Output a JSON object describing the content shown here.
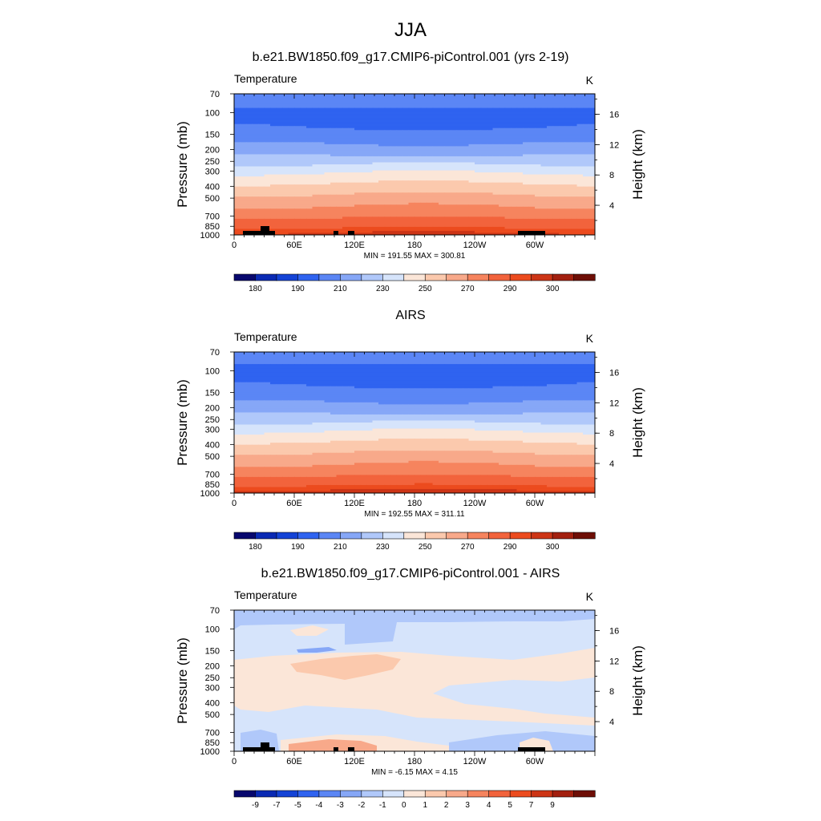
{
  "title": "JJA",
  "panels": [
    {
      "title": "b.e21.BW1850.f09_g17.CMIP6-piControl.001 (yrs 2-19)",
      "left_label": "Temperature",
      "right_label": "K",
      "stats": "MIN = 191.55  MAX = 300.81",
      "kind": "abs",
      "terrain": true
    },
    {
      "title": "AIRS",
      "left_label": "Temperature",
      "right_label": "K",
      "stats": "MIN = 192.55  MAX = 311.11",
      "kind": "abs",
      "terrain": false
    },
    {
      "title": "b.e21.BW1850.f09_g17.CMIP6-piControl.001 - AIRS",
      "left_label": "Temperature",
      "right_label": "K",
      "stats": "MIN =  -6.15  MAX =   4.15",
      "kind": "diff",
      "terrain": true
    }
  ],
  "axes": {
    "ylabel": "Pressure (mb)",
    "y2label": "Height (km)",
    "pressure_ticks": [
      "70",
      "100",
      "150",
      "200",
      "250",
      "300",
      "400",
      "500",
      "700",
      "850",
      "1000"
    ],
    "height_ticks": [
      "16",
      "12",
      "8",
      "4"
    ],
    "x_ticks": [
      "0",
      "60E",
      "120E",
      "180",
      "120W",
      "60W"
    ]
  },
  "colorbars": {
    "abs": {
      "colors": [
        "#08086e",
        "#0a2ab4",
        "#1443d6",
        "#2f63f0",
        "#5b86f5",
        "#86a7f7",
        "#b0c8fa",
        "#d6e4fb",
        "#fbe6d8",
        "#fbc9ad",
        "#f8a98a",
        "#f6845e",
        "#f2633c",
        "#ec4b1e",
        "#cd3516",
        "#a3200f",
        "#6e0e06"
      ],
      "labels": [
        "180",
        "190",
        "210",
        "230",
        "250",
        "270",
        "290",
        "300"
      ]
    },
    "diff": {
      "colors": [
        "#08086e",
        "#0a2ab4",
        "#1443d6",
        "#2f63f0",
        "#5b86f5",
        "#86a7f7",
        "#b0c8fa",
        "#d6e4fb",
        "#fbe6d8",
        "#fbc9ad",
        "#f8a98a",
        "#f6845e",
        "#f2633c",
        "#ec4b1e",
        "#cd3516",
        "#a3200f",
        "#6e0e06"
      ],
      "labels": [
        "-9",
        "-7",
        "-5",
        "-4",
        "-3",
        "-2",
        "-1",
        "0",
        "1",
        "2",
        "3",
        "4",
        "5",
        "7",
        "9"
      ]
    }
  },
  "chart_data": [
    {
      "type": "heatmap",
      "title": "b.e21.BW1850.f09_g17.CMIP6-piControl.001 (yrs 2-19)",
      "xlabel": "",
      "ylabel": "Pressure (mb)",
      "y2label": "Height (km)",
      "variable": "Temperature",
      "units": "K",
      "x_ticks": [
        "0",
        "60E",
        "120E",
        "180",
        "120W",
        "60W"
      ],
      "xlim": [
        0,
        360
      ],
      "ylim": [
        1000,
        70
      ],
      "min": 191.55,
      "max": 300.81,
      "levels": [
        180,
        190,
        210,
        230,
        250,
        270,
        290,
        300
      ],
      "profile": [
        {
          "p": 70,
          "t": 208
        },
        {
          "p": 85,
          "t": 202
        },
        {
          "p": 100,
          "t": 196
        },
        {
          "p": 130,
          "t": 199
        },
        {
          "p": 160,
          "t": 206
        },
        {
          "p": 200,
          "t": 214
        },
        {
          "p": 250,
          "t": 226
        },
        {
          "p": 300,
          "t": 238
        },
        {
          "p": 400,
          "t": 253
        },
        {
          "p": 500,
          "t": 263
        },
        {
          "p": 600,
          "t": 271
        },
        {
          "p": 700,
          "t": 278
        },
        {
          "p": 850,
          "t": 288
        },
        {
          "p": 925,
          "t": 293
        },
        {
          "p": 1000,
          "t": 297
        }
      ]
    },
    {
      "type": "heatmap",
      "title": "AIRS",
      "xlabel": "",
      "ylabel": "Pressure (mb)",
      "y2label": "Height (km)",
      "variable": "Temperature",
      "units": "K",
      "x_ticks": [
        "0",
        "60E",
        "120E",
        "180",
        "120W",
        "60W"
      ],
      "xlim": [
        0,
        360
      ],
      "ylim": [
        1000,
        70
      ],
      "min": 192.55,
      "max": 311.11,
      "levels": [
        180,
        190,
        210,
        230,
        250,
        270,
        290,
        300
      ],
      "profile": [
        {
          "p": 70,
          "t": 206
        },
        {
          "p": 85,
          "t": 201
        },
        {
          "p": 100,
          "t": 196
        },
        {
          "p": 130,
          "t": 199
        },
        {
          "p": 160,
          "t": 206
        },
        {
          "p": 200,
          "t": 214
        },
        {
          "p": 250,
          "t": 226
        },
        {
          "p": 300,
          "t": 238
        },
        {
          "p": 400,
          "t": 253
        },
        {
          "p": 500,
          "t": 263
        },
        {
          "p": 600,
          "t": 271
        },
        {
          "p": 700,
          "t": 278
        },
        {
          "p": 850,
          "t": 289
        },
        {
          "p": 925,
          "t": 294
        },
        {
          "p": 1000,
          "t": 298
        }
      ]
    },
    {
      "type": "heatmap",
      "title": "b.e21.BW1850.f09_g17.CMIP6-piControl.001 - AIRS",
      "xlabel": "",
      "ylabel": "Pressure (mb)",
      "y2label": "Height (km)",
      "variable": "Temperature",
      "units": "K",
      "x_ticks": [
        "0",
        "60E",
        "120E",
        "180",
        "120W",
        "60W"
      ],
      "xlim": [
        0,
        360
      ],
      "ylim": [
        1000,
        70
      ],
      "min": -6.15,
      "max": 4.15,
      "levels": [
        -9,
        -7,
        -5,
        -4,
        -3,
        -2,
        -1,
        0,
        1,
        2,
        3,
        4,
        5,
        7,
        9
      ]
    }
  ]
}
